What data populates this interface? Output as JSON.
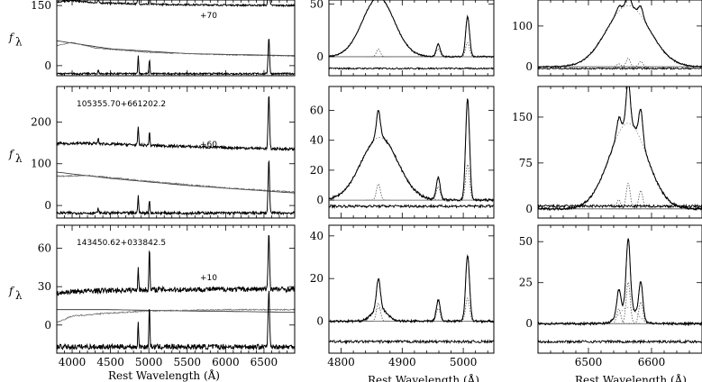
{
  "chart_data": {
    "type": "line",
    "x_title": "Rest Wavelength (Å)",
    "y_title_main": "f",
    "y_title_sub": "λ",
    "rows": [
      {
        "name": "",
        "offset_label": "+70",
        "left": {
          "xlim": [
            3800,
            6900
          ],
          "ylim": [
            -25,
            175
          ],
          "xticks": [
            4000,
            4500,
            5000,
            5500,
            6000,
            6500
          ],
          "yticks": [
            0,
            150
          ],
          "continuum": [
            [
              3800,
              62
            ],
            [
              4500,
              42
            ],
            [
              5500,
              30
            ],
            [
              6900,
              25
            ]
          ],
          "host": [
            [
              3800,
              50
            ],
            [
              4000,
              58
            ],
            [
              4300,
              44
            ],
            [
              5000,
              33
            ],
            [
              6000,
              27
            ],
            [
              6900,
              24
            ]
          ],
          "spectrum_base": 150,
          "residual_base": -20,
          "lines": [
            [
              4340,
              10
            ],
            [
              4861,
              45
            ],
            [
              5007,
              35
            ],
            [
              6563,
              90
            ]
          ]
        },
        "middle": {
          "xlim": [
            4780,
            5050
          ],
          "ylim": [
            -18,
            58
          ],
          "yticks": [
            0,
            50
          ],
          "broad": {
            "center": 4861,
            "width": 26,
            "peak": 56
          },
          "narrow": [
            [
              4861,
              12
            ],
            [
              4959,
              12
            ],
            [
              5007,
              38
            ]
          ]
        },
        "right": {
          "xlim": [
            6420,
            6680
          ],
          "ylim": [
            -22,
            175
          ],
          "yticks": [
            0,
            100
          ],
          "broad": {
            "center": 6563,
            "width": 34,
            "peak": 150
          },
          "narrow": [
            [
              6548,
              12
            ],
            [
              6563,
              35
            ],
            [
              6583,
              22
            ]
          ]
        }
      },
      {
        "name": "105355.70+661202.2",
        "offset_label": "+60",
        "left": {
          "xlim": [
            3800,
            6900
          ],
          "ylim": [
            -30,
            285
          ],
          "xticks": [
            4000,
            4500,
            5000,
            5500,
            6000,
            6500
          ],
          "yticks": [
            0,
            100,
            200
          ],
          "continuum": [
            [
              3800,
              80
            ],
            [
              4500,
              65
            ],
            [
              5500,
              48
            ],
            [
              6900,
              30
            ]
          ],
          "host": [
            [
              3800,
              70
            ],
            [
              4200,
              72
            ],
            [
              5000,
              58
            ],
            [
              6000,
              42
            ],
            [
              6900,
              32
            ]
          ],
          "spectrum_base": 135,
          "residual_base": -18,
          "lines": [
            [
              4340,
              12
            ],
            [
              4861,
              45
            ],
            [
              5007,
              32
            ],
            [
              6563,
              130
            ]
          ]
        },
        "middle": {
          "xlim": [
            4780,
            5050
          ],
          "ylim": [
            -12,
            76
          ],
          "yticks": [
            0,
            20,
            40,
            60
          ],
          "broad": {
            "center": 4863,
            "width": 30,
            "peak": 42
          },
          "narrow": [
            [
              4861,
              18
            ],
            [
              4959,
              15
            ],
            [
              5007,
              68
            ]
          ]
        },
        "right": {
          "xlim": [
            6420,
            6680
          ],
          "ylim": [
            -15,
            200
          ],
          "yticks": [
            0,
            75,
            150
          ],
          "broad": {
            "center": 6563,
            "width": 30,
            "peak": 140
          },
          "narrow": [
            [
              6548,
              25
            ],
            [
              6563,
              70
            ],
            [
              6583,
              50
            ]
          ]
        }
      },
      {
        "name": "143450.62+033842.5",
        "offset_label": "+10",
        "left": {
          "xlim": [
            3800,
            6900
          ],
          "ylim": [
            -22,
            78
          ],
          "xticks": [
            4000,
            4500,
            5000,
            5500,
            6000,
            6500
          ],
          "yticks": [
            0,
            30,
            60
          ],
          "continuum": [
            [
              3800,
              12
            ],
            [
              4500,
              12
            ],
            [
              5500,
              11
            ],
            [
              6900,
              10
            ]
          ],
          "host": [
            [
              3800,
              2
            ],
            [
              4000,
              7
            ],
            [
              4400,
              9
            ],
            [
              5000,
              11
            ],
            [
              6000,
              12
            ],
            [
              6900,
              12
            ]
          ],
          "spectrum_base": 28,
          "residual_base": -17,
          "lines": [
            [
              4861,
              18
            ],
            [
              5007,
              32
            ],
            [
              6563,
              45
            ]
          ]
        },
        "middle": {
          "xlim": [
            4780,
            5050
          ],
          "ylim": [
            -15,
            45
          ],
          "yticks": [
            0,
            20,
            40
          ],
          "broad": {
            "center": 4863,
            "width": 12,
            "peak": 6
          },
          "narrow": [
            [
              4861,
              14
            ],
            [
              4959,
              10
            ],
            [
              5007,
              31
            ]
          ]
        },
        "right": {
          "xlim": [
            6420,
            6680
          ],
          "ylim": [
            -18,
            60
          ],
          "yticks": [
            0,
            25,
            50
          ],
          "broad": {
            "center": 6563,
            "width": 14,
            "peak": 10
          },
          "narrow": [
            [
              6548,
              15
            ],
            [
              6563,
              42
            ],
            [
              6583,
              22
            ]
          ]
        }
      }
    ],
    "bottom_xticks_left": [
      4000,
      4500,
      5000,
      5500,
      6000,
      6500
    ],
    "bottom_xticks_middle": [
      4800,
      4900,
      5000
    ],
    "bottom_xticks_right": [
      6500,
      6600
    ]
  }
}
